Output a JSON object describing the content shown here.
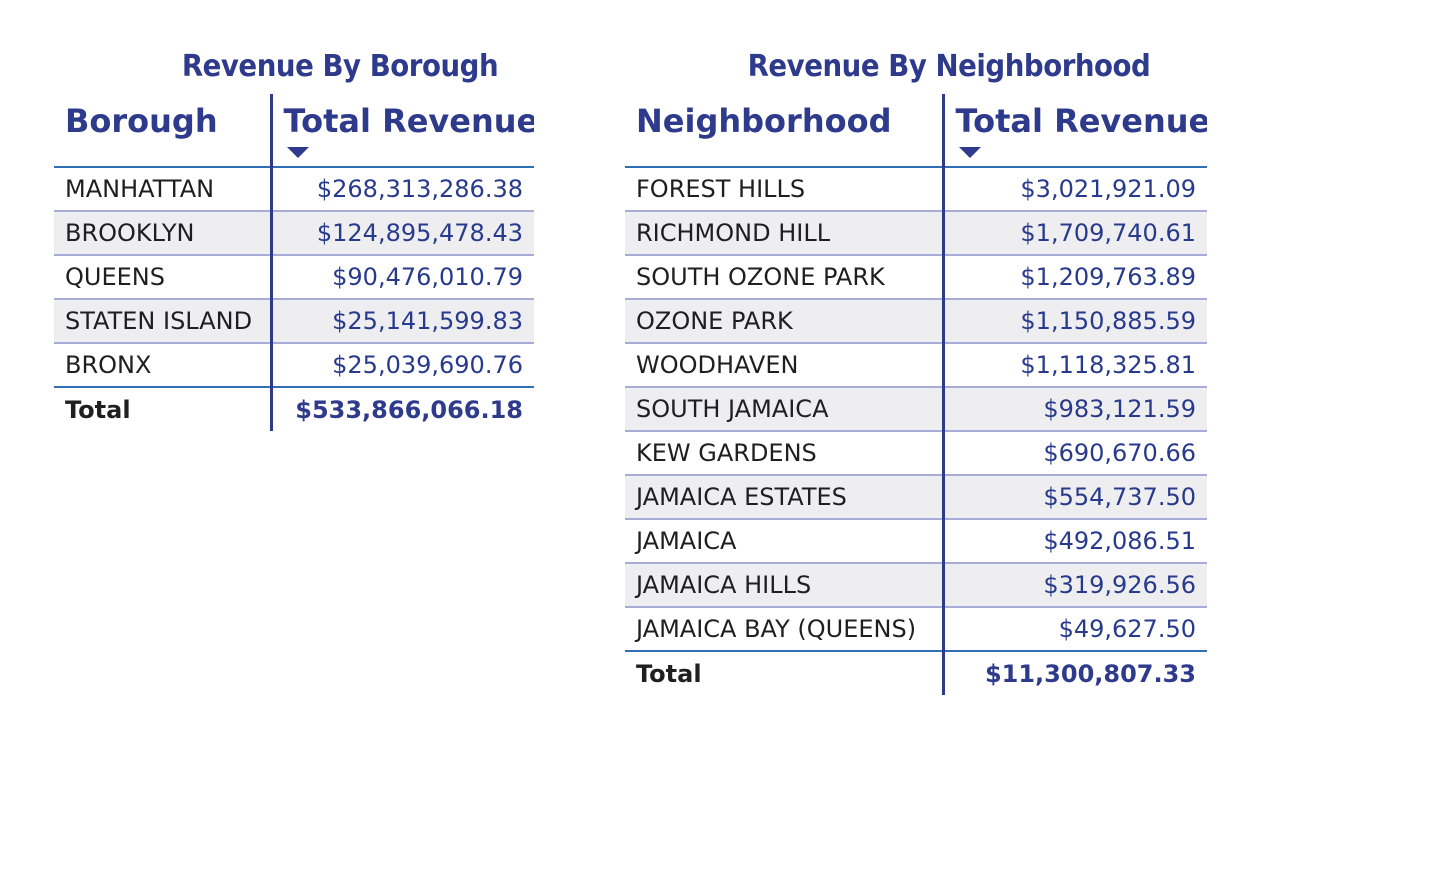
{
  "colors": {
    "title": "#2E3A8C",
    "value_text": "#283A8C",
    "row_band": "#EEEEF0",
    "row_divider": "#A8ACD8",
    "header_rule": "#2F6EB5",
    "column_divider": "#2E3A8C"
  },
  "icons": {
    "sort": "sort-descending-icon"
  },
  "chart_data": [
    {
      "type": "table",
      "title": "Revenue By Borough",
      "columns": [
        "Borough",
        "Total Revenue"
      ],
      "sorted_by": "Total Revenue",
      "sort_order": "descending",
      "rows": [
        {
          "label": "MANHATTAN",
          "value": 268313286.38,
          "display": "$268,313,286.38"
        },
        {
          "label": "BROOKLYN",
          "value": 124895478.43,
          "display": "$124,895,478.43"
        },
        {
          "label": "QUEENS",
          "value": 90476010.79,
          "display": "$90,476,010.79"
        },
        {
          "label": "STATEN ISLAND",
          "value": 25141599.83,
          "display": "$25,141,599.83"
        },
        {
          "label": "BRONX",
          "value": 25039690.76,
          "display": "$25,039,690.76"
        }
      ],
      "total": {
        "label": "Total",
        "value": 533866066.18,
        "display": "$533,866,066.18"
      }
    },
    {
      "type": "table",
      "title": "Revenue By Neighborhood",
      "columns": [
        "Neighborhood",
        "Total Revenue"
      ],
      "sorted_by": "Total Revenue",
      "sort_order": "descending",
      "rows": [
        {
          "label": "FOREST HILLS",
          "value": 3021921.09,
          "display": "$3,021,921.09"
        },
        {
          "label": "RICHMOND HILL",
          "value": 1709740.61,
          "display": "$1,709,740.61"
        },
        {
          "label": "SOUTH OZONE PARK",
          "value": 1209763.89,
          "display": "$1,209,763.89"
        },
        {
          "label": "OZONE PARK",
          "value": 1150885.59,
          "display": "$1,150,885.59"
        },
        {
          "label": "WOODHAVEN",
          "value": 1118325.81,
          "display": "$1,118,325.81"
        },
        {
          "label": "SOUTH JAMAICA",
          "value": 983121.59,
          "display": "$983,121.59"
        },
        {
          "label": "KEW GARDENS",
          "value": 690670.66,
          "display": "$690,670.66"
        },
        {
          "label": "JAMAICA ESTATES",
          "value": 554737.5,
          "display": "$554,737.50"
        },
        {
          "label": "JAMAICA",
          "value": 492086.51,
          "display": "$492,086.51"
        },
        {
          "label": "JAMAICA HILLS",
          "value": 319926.56,
          "display": "$319,926.56"
        },
        {
          "label": "JAMAICA BAY (QUEENS)",
          "value": 49627.5,
          "display": "$49,627.50"
        }
      ],
      "total": {
        "label": "Total",
        "value": 11300807.33,
        "display": "$11,300,807.33"
      }
    }
  ]
}
